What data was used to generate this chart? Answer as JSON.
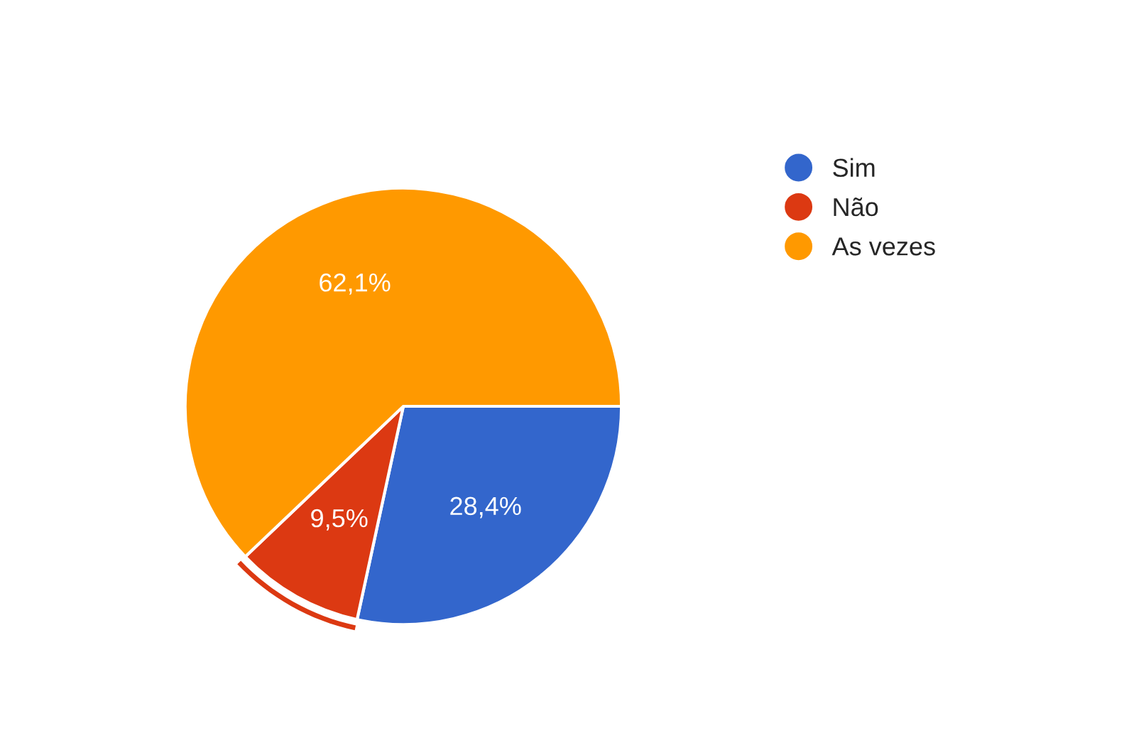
{
  "chart_data": {
    "type": "pie",
    "categories": [
      "Sim",
      "Não",
      "As vezes"
    ],
    "values": [
      28.4,
      9.5,
      62.1
    ],
    "colors": [
      "#3366cc",
      "#dc3912",
      "#ff9900"
    ],
    "value_labels": [
      "28,4%",
      "9,5%",
      "62,1%"
    ],
    "legend": "top right"
  }
}
